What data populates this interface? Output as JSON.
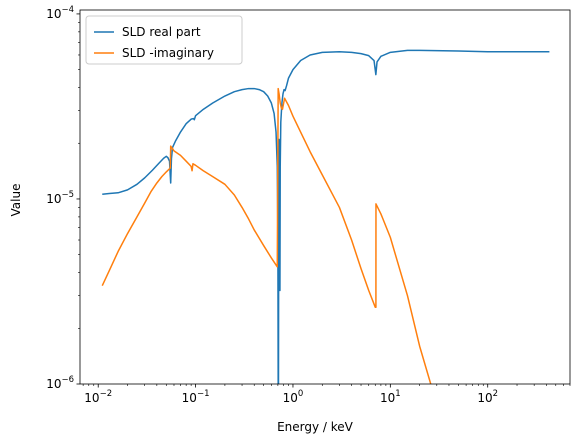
{
  "chart_data": {
    "type": "line",
    "xlabel": "Energy / keV",
    "ylabel": "Value",
    "x_scale": "log",
    "y_scale": "log",
    "xlim": [
      0.0065,
      700
    ],
    "ylim": [
      1e-06,
      0.000105
    ],
    "x_ticks": [
      {
        "value": 0.01,
        "base": "10",
        "exp": "−2"
      },
      {
        "value": 0.1,
        "base": "10",
        "exp": "−1"
      },
      {
        "value": 1,
        "base": "10",
        "exp": "0"
      },
      {
        "value": 10,
        "base": "10",
        "exp": "1"
      },
      {
        "value": 100,
        "base": "10",
        "exp": "2"
      }
    ],
    "y_ticks": [
      {
        "value": 1e-06,
        "base": "10",
        "exp": "−6"
      },
      {
        "value": 1e-05,
        "base": "10",
        "exp": "−5"
      },
      {
        "value": 0.0001,
        "base": "10",
        "exp": "−4"
      }
    ],
    "legend_position": "top-left",
    "grid": false,
    "series": [
      {
        "name": "SLD real part",
        "color": "#1f77b4",
        "points": [
          [
            0.011,
            1.06e-05
          ],
          [
            0.013,
            1.07e-05
          ],
          [
            0.016,
            1.08e-05
          ],
          [
            0.02,
            1.12e-05
          ],
          [
            0.025,
            1.2e-05
          ],
          [
            0.03,
            1.3e-05
          ],
          [
            0.036,
            1.43e-05
          ],
          [
            0.042,
            1.56e-05
          ],
          [
            0.047,
            1.66e-05
          ],
          [
            0.05,
            1.7e-05
          ],
          [
            0.052,
            1.67e-05
          ],
          [
            0.054,
            1.6e-05
          ],
          [
            0.0555,
            1.22e-05
          ],
          [
            0.0565,
            1.65e-05
          ],
          [
            0.058,
            1.9e-05
          ],
          [
            0.062,
            2.05e-05
          ],
          [
            0.07,
            2.3e-05
          ],
          [
            0.08,
            2.55e-05
          ],
          [
            0.09,
            2.7e-05
          ],
          [
            0.095,
            2.72e-05
          ],
          [
            0.097,
            2.68e-05
          ],
          [
            0.1,
            2.82e-05
          ],
          [
            0.12,
            3.05e-05
          ],
          [
            0.15,
            3.3e-05
          ],
          [
            0.2,
            3.6e-05
          ],
          [
            0.25,
            3.8e-05
          ],
          [
            0.3,
            3.9e-05
          ],
          [
            0.35,
            3.95e-05
          ],
          [
            0.4,
            3.95e-05
          ],
          [
            0.45,
            3.9e-05
          ],
          [
            0.5,
            3.8e-05
          ],
          [
            0.55,
            3.6e-05
          ],
          [
            0.6,
            3.3e-05
          ],
          [
            0.64,
            2.9e-05
          ],
          [
            0.67,
            2.3e-05
          ],
          [
            0.69,
            1.5e-05
          ],
          [
            0.7,
            6e-06
          ],
          [
            0.705,
            1e-06
          ],
          [
            0.71,
            1e-06
          ],
          [
            0.715,
            1.2e-05
          ],
          [
            0.72,
            2.1e-05
          ],
          [
            0.725,
            1.1e-05
          ],
          [
            0.73,
            6e-06
          ],
          [
            0.735,
            3.2e-06
          ],
          [
            0.74,
            1.5e-05
          ],
          [
            0.75,
            2.6e-05
          ],
          [
            0.77,
            3.3e-05
          ],
          [
            0.79,
            3.7e-05
          ],
          [
            0.81,
            3.9e-05
          ],
          [
            0.83,
            3.85e-05
          ],
          [
            0.86,
            4.1e-05
          ],
          [
            0.9,
            4.5e-05
          ],
          [
            1.0,
            5e-05
          ],
          [
            1.2,
            5.6e-05
          ],
          [
            1.5,
            6e-05
          ],
          [
            2.0,
            6.2e-05
          ],
          [
            3.0,
            6.25e-05
          ],
          [
            4.0,
            6.2e-05
          ],
          [
            5.0,
            6.1e-05
          ],
          [
            6.0,
            5.95e-05
          ],
          [
            6.8,
            5.6e-05
          ],
          [
            7.1,
            4.7e-05
          ],
          [
            7.3,
            5.5e-05
          ],
          [
            8.0,
            5.9e-05
          ],
          [
            10,
            6.2e-05
          ],
          [
            15,
            6.35e-05
          ],
          [
            20,
            6.35e-05
          ],
          [
            50,
            6.3e-05
          ],
          [
            100,
            6.25e-05
          ],
          [
            200,
            6.25e-05
          ],
          [
            430,
            6.25e-05
          ]
        ]
      },
      {
        "name": "SLD -imaginary",
        "color": "#ff7f0e",
        "points": [
          [
            0.011,
            3.4e-06
          ],
          [
            0.013,
            4.1e-06
          ],
          [
            0.016,
            5.2e-06
          ],
          [
            0.02,
            6.5e-06
          ],
          [
            0.025,
            8e-06
          ],
          [
            0.03,
            9.5e-06
          ],
          [
            0.035,
            1.1e-05
          ],
          [
            0.04,
            1.22e-05
          ],
          [
            0.045,
            1.32e-05
          ],
          [
            0.05,
            1.4e-05
          ],
          [
            0.055,
            1.47e-05
          ],
          [
            0.0555,
            1.93e-05
          ],
          [
            0.06,
            1.82e-05
          ],
          [
            0.07,
            1.72e-05
          ],
          [
            0.08,
            1.6e-05
          ],
          [
            0.09,
            1.5e-05
          ],
          [
            0.092,
            1.42e-05
          ],
          [
            0.094,
            1.55e-05
          ],
          [
            0.1,
            1.52e-05
          ],
          [
            0.12,
            1.42e-05
          ],
          [
            0.15,
            1.32e-05
          ],
          [
            0.2,
            1.2e-05
          ],
          [
            0.25,
            1.05e-05
          ],
          [
            0.3,
            9e-06
          ],
          [
            0.35,
            7.8e-06
          ],
          [
            0.4,
            6.8e-06
          ],
          [
            0.5,
            5.6e-06
          ],
          [
            0.6,
            4.8e-06
          ],
          [
            0.69,
            4.3e-06
          ],
          [
            0.705,
            3.95e-05
          ],
          [
            0.72,
            3.7e-05
          ],
          [
            0.74,
            3.3e-05
          ],
          [
            0.76,
            3.1e-05
          ],
          [
            0.78,
            3.05e-05
          ],
          [
            0.82,
            3.5e-05
          ],
          [
            0.9,
            3.2e-05
          ],
          [
            1.0,
            2.8e-05
          ],
          [
            1.5,
            1.8e-05
          ],
          [
            2.0,
            1.35e-05
          ],
          [
            3.0,
            9e-06
          ],
          [
            4.0,
            6e-06
          ],
          [
            5.0,
            4.2e-06
          ],
          [
            6.0,
            3.2e-06
          ],
          [
            7.0,
            2.6e-06
          ],
          [
            7.11,
            2.6e-06
          ],
          [
            7.12,
            9.4e-06
          ],
          [
            8.0,
            8.3e-06
          ],
          [
            10,
            6.2e-06
          ],
          [
            15,
            3e-06
          ],
          [
            20,
            1.6e-06
          ],
          [
            26,
            1e-06
          ]
        ]
      }
    ]
  }
}
